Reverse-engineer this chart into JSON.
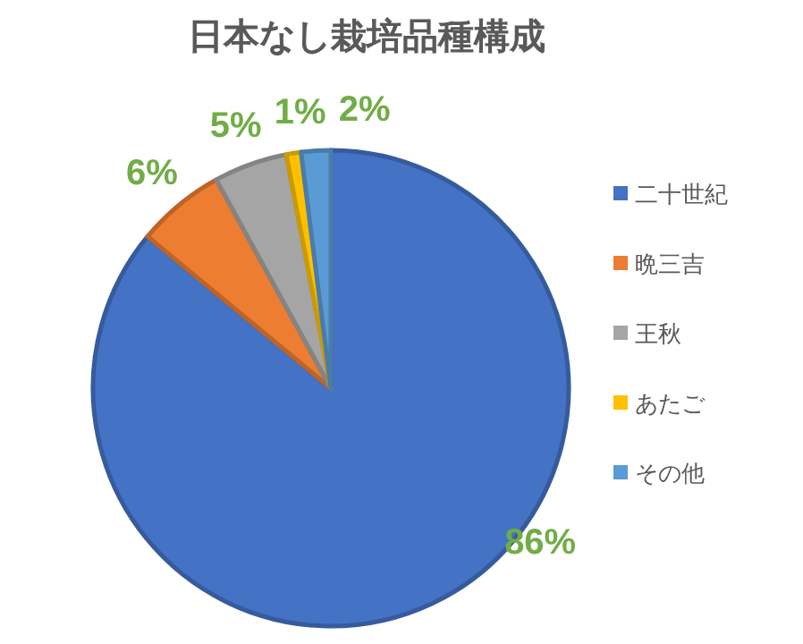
{
  "chart_data": {
    "type": "pie",
    "title": "日本なし栽培品種構成",
    "categories": [
      "二十世紀",
      "晩三吉",
      "王秋",
      "あたご",
      "その他"
    ],
    "values": [
      86,
      6,
      5,
      1,
      2
    ],
    "colors": [
      "#4472c4",
      "#ed7d31",
      "#a5a5a5",
      "#ffc000",
      "#5b9bd5"
    ],
    "value_labels": [
      "86%",
      "6%",
      "5%",
      "1%",
      "2%"
    ],
    "legend": "right"
  }
}
